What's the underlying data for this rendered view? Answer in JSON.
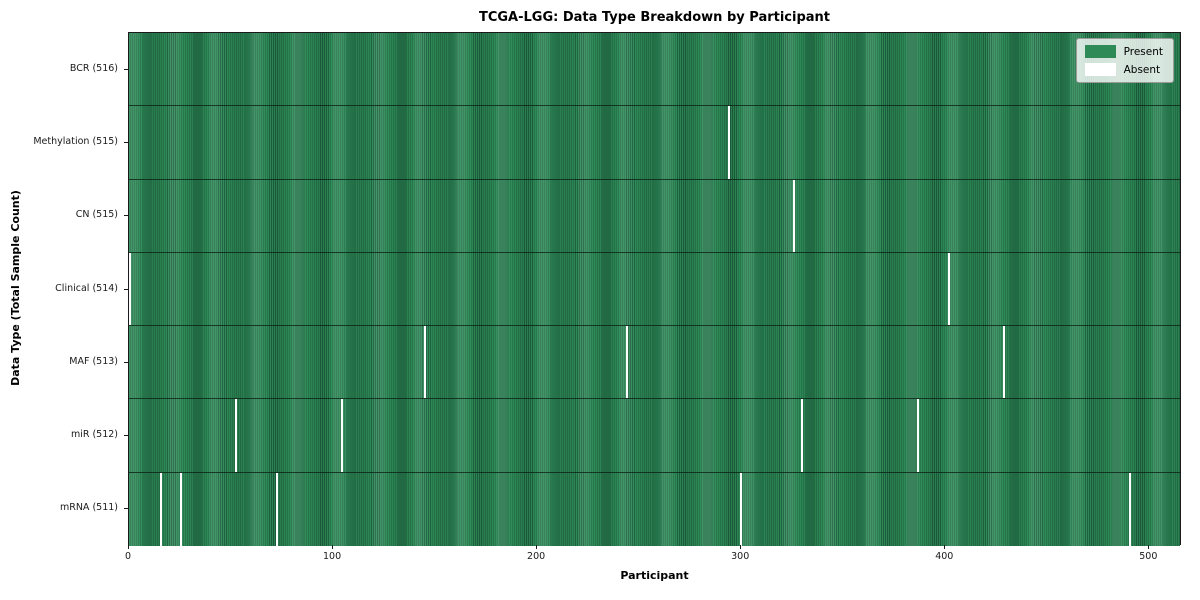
{
  "title": "TCGA-LGG: Data Type Breakdown by Participant",
  "legend": {
    "present_label": "Present",
    "absent_label": "Absent"
  },
  "colors": {
    "present": "#2e8b57",
    "present_edge": "#1e6140",
    "absent": "#ffffff",
    "spine": "#1a1a1a"
  },
  "chart_data": {
    "type": "heatmap",
    "title": "TCGA-LGG: Data Type Breakdown by Participant",
    "xlabel": "Participant",
    "ylabel": "Data Type (Total Sample Count)",
    "x_range": [
      0,
      516
    ],
    "x_ticks": [
      0,
      100,
      200,
      300,
      400,
      500
    ],
    "n_participants": 516,
    "grid": false,
    "legend_position": "upper right",
    "legend_entries": [
      {
        "label": "Present",
        "color": "#2e8b57"
      },
      {
        "label": "Absent",
        "color": "#ffffff"
      }
    ],
    "rows": [
      {
        "label": "BCR (516)",
        "data_type": "BCR",
        "total_samples": 516,
        "absent_participants": []
      },
      {
        "label": "Methylation (515)",
        "data_type": "Methylation",
        "total_samples": 515,
        "absent_participants": [
          294
        ]
      },
      {
        "label": "CN (515)",
        "data_type": "CN",
        "total_samples": 515,
        "absent_participants": [
          326
        ]
      },
      {
        "label": "Clinical (514)",
        "data_type": "Clinical",
        "total_samples": 514,
        "absent_participants": [
          0,
          402
        ]
      },
      {
        "label": "MAF (513)",
        "data_type": "MAF",
        "total_samples": 513,
        "absent_participants": [
          145,
          244,
          429
        ]
      },
      {
        "label": "miR (512)",
        "data_type": "miR",
        "total_samples": 512,
        "absent_participants": [
          52,
          104,
          330,
          387
        ]
      },
      {
        "label": "mRNA (511)",
        "data_type": "mRNA",
        "total_samples": 511,
        "absent_participants": [
          15,
          25,
          72,
          300,
          491
        ]
      }
    ]
  }
}
